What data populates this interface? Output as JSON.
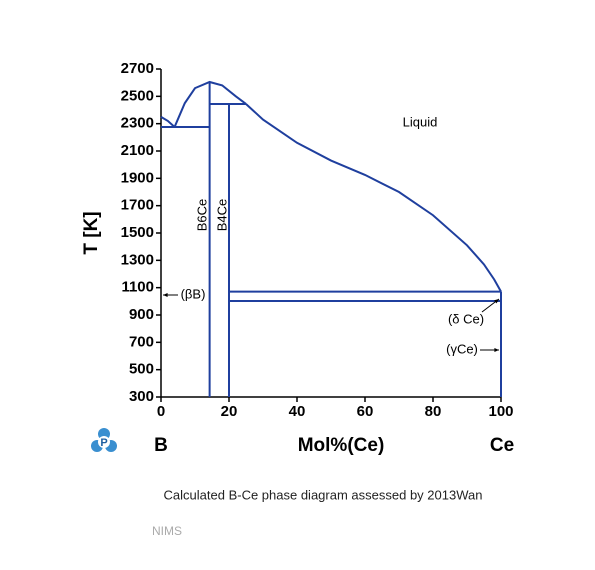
{
  "chart_data": {
    "type": "line",
    "x_label": "Mol%(Ce)",
    "y_label": "T [K]",
    "end_labels": [
      "B",
      "Ce"
    ],
    "xlim": [
      0,
      100
    ],
    "ylim": [
      300,
      2700
    ],
    "xticks": [
      0,
      20,
      40,
      60,
      80,
      100
    ],
    "yticks": [
      300,
      500,
      700,
      900,
      1100,
      1300,
      1500,
      1700,
      1900,
      2100,
      2300,
      2500,
      2700
    ],
    "series": [
      {
        "color": "#1f3f9e",
        "x": [
          0,
          2,
          4
        ],
        "values": [
          2350,
          2320,
          2276
        ]
      },
      {
        "color": "#1f3f9e",
        "x": [
          4,
          7,
          10,
          14.3,
          18,
          22,
          25
        ],
        "values": [
          2276,
          2450,
          2560,
          2605,
          2580,
          2500,
          2444
        ]
      },
      {
        "color": "#1f3f9e",
        "x": [
          25,
          30,
          40,
          50,
          60,
          70,
          80,
          90,
          95,
          98,
          100
        ],
        "values": [
          2444,
          2330,
          2160,
          2030,
          1925,
          1800,
          1630,
          1410,
          1270,
          1160,
          1071
        ]
      },
      {
        "color": "#1f3f9e",
        "x": [
          0,
          14.3
        ],
        "values": [
          2276,
          2276
        ]
      },
      {
        "color": "#1f3f9e",
        "x": [
          14.3,
          25
        ],
        "values": [
          2444,
          2444
        ]
      },
      {
        "color": "#1f3f9e",
        "x": [
          14.3,
          14.3
        ],
        "values": [
          300,
          2605
        ]
      },
      {
        "color": "#1f3f9e",
        "x": [
          20,
          20
        ],
        "values": [
          300,
          2444
        ]
      },
      {
        "color": "#1f3f9e",
        "x": [
          20,
          100
        ],
        "values": [
          1071,
          1071
        ]
      },
      {
        "color": "#1f3f9e",
        "x": [
          20,
          100
        ],
        "values": [
          1002,
          1002
        ]
      },
      {
        "color": "#1f3f9e",
        "x": [
          100,
          100
        ],
        "values": [
          300,
          1071
        ]
      }
    ],
    "annotations": [
      "Liquid",
      "B6Ce",
      "B4Ce",
      "(βB)",
      "(δ Ce)",
      "(γCe)"
    ]
  },
  "caption": "Calculated B-Ce phase diagram assessed by 2013Wan",
  "source": "NIMS"
}
